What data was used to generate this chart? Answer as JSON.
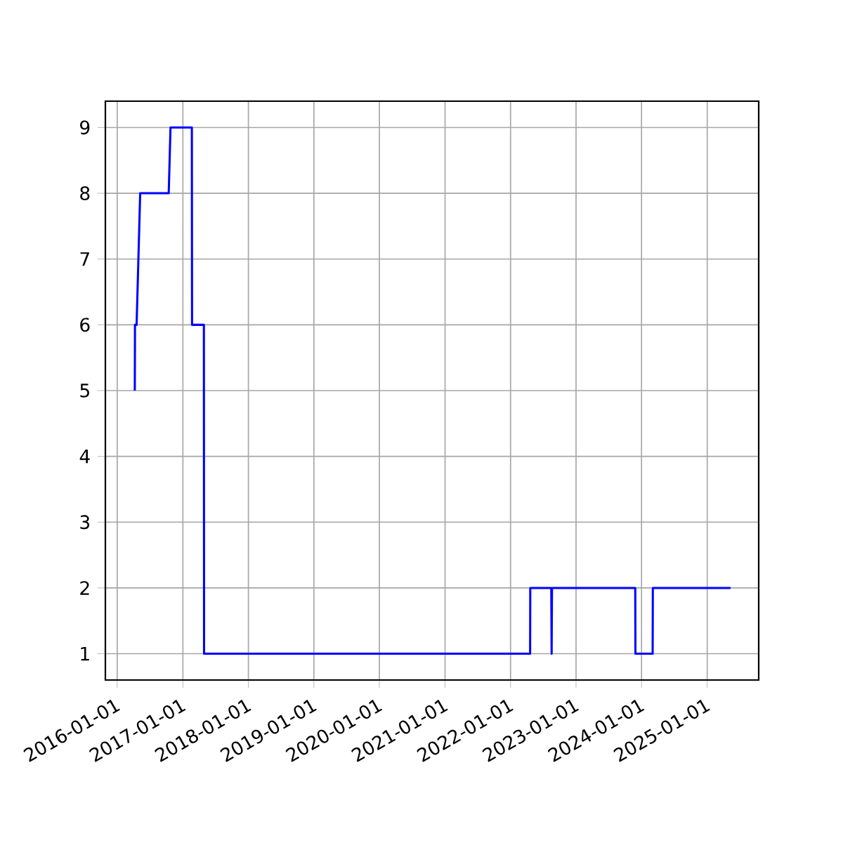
{
  "chart_data": {
    "type": "line",
    "color": "#0000ff",
    "grid": true,
    "x": [
      "2016-04-08",
      "2016-04-09",
      "2016-04-18",
      "2016-05-08",
      "2016-10-14",
      "2016-10-24",
      "2017-02-20",
      "2017-02-21",
      "2017-04-28",
      "2017-04-29",
      "2022-04-20",
      "2022-04-21",
      "2022-08-16",
      "2022-08-18",
      "2022-08-20",
      "2023-11-27",
      "2023-11-28",
      "2024-03-03",
      "2024-03-04",
      "2025-05-11"
    ],
    "values": [
      5,
      6,
      6,
      8,
      8,
      9,
      9,
      6,
      6,
      1,
      1,
      2,
      2,
      1,
      2,
      2,
      1,
      1,
      2,
      2
    ],
    "xlim": [
      "2015-10-27",
      "2025-10-15"
    ],
    "ylim": [
      0.6,
      9.4
    ],
    "xticks": [
      "2016-01-01",
      "2017-01-01",
      "2018-01-01",
      "2019-01-01",
      "2020-01-01",
      "2021-01-01",
      "2022-01-01",
      "2023-01-01",
      "2024-01-01",
      "2025-01-01"
    ],
    "yticks": [
      1,
      2,
      3,
      4,
      5,
      6,
      7,
      8,
      9
    ]
  }
}
